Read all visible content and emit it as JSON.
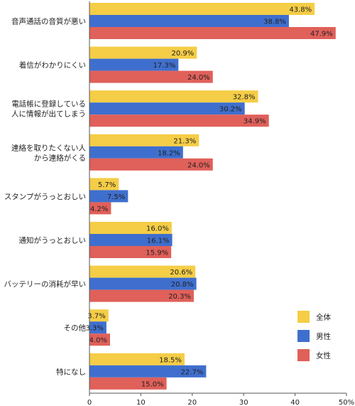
{
  "chart_data": {
    "type": "bar",
    "orientation": "horizontal",
    "categories": [
      [
        "音声通話の音質が悪い"
      ],
      [
        "着信がわかりにくい"
      ],
      [
        "電話帳に登録している",
        "人に情報が出てしまう"
      ],
      [
        "連絡を取りたくない人",
        "から連絡がくる"
      ],
      [
        "スタンプがうっとおしい"
      ],
      [
        "通知がうっとおしい"
      ],
      [
        "バッテリーの消耗が早い"
      ],
      [
        "その他"
      ],
      [
        "特になし"
      ]
    ],
    "series": [
      {
        "name": "全体",
        "color": "#f5cd46",
        "values": [
          43.8,
          20.9,
          32.8,
          21.3,
          5.7,
          16.0,
          20.6,
          3.7,
          18.5
        ],
        "labels": [
          "43.8%",
          "20.9%",
          "32.8%",
          "21.3%",
          "5.7%",
          "16.0%",
          "20.6%",
          "3.7%",
          "18.5%"
        ]
      },
      {
        "name": "男性",
        "color": "#3f6fce",
        "values": [
          38.8,
          17.3,
          30.2,
          18.2,
          7.5,
          16.1,
          20.8,
          3.3,
          22.7
        ],
        "labels": [
          "38.8%",
          "17.3%",
          "30.2%",
          "18.2%",
          "7.5%",
          "16.1%",
          "20.8%",
          "3.3%",
          "22.7%"
        ]
      },
      {
        "name": "女性",
        "color": "#e0605a",
        "values": [
          47.9,
          24.0,
          34.9,
          24.0,
          4.2,
          15.9,
          20.3,
          4.0,
          15.0
        ],
        "labels": [
          "47.9%",
          "24.0%",
          "34.9%",
          "24.0%",
          "4.2%",
          "15.9%",
          "20.3%",
          "4.0%",
          "15.0%"
        ]
      }
    ],
    "xlim": [
      0,
      50
    ],
    "xticks": [
      "0",
      "10",
      "20",
      "30",
      "40",
      "50%"
    ],
    "legend_position": "bottom-right",
    "grid": false
  }
}
